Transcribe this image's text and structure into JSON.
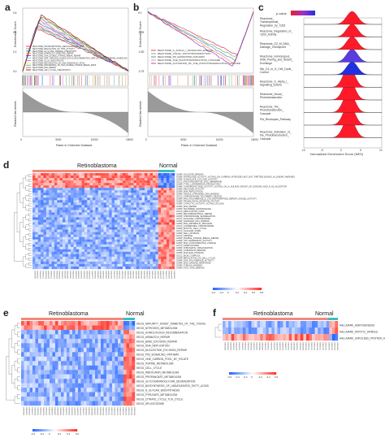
{
  "panels": {
    "a": {
      "letter": "a",
      "ylabel_top": "Enrichment Score",
      "ylabel_bottom": "Ranked list metric",
      "xlabel": "Rank in Ordered Dataset",
      "legend": [
        "REACTOME_TRANSCRIPTIONAL_REGULATION_BY_TP53",
        "REACTOME_REGULATION_OF_TP53_ACTIVITY",
        "REACTOME_G2_M_DNA_DAMAGE_CHECKPOINT",
        "REACTOME_HOMOLOGY_DIRECTED_REPAIR",
        "REACTOME_DNA_DOUBLE_STRAND_BREAK_REPAIR",
        "REACTOME_HDR_THROUGH_HOMOLOGOUS_RECOMBINATION_HRR_OR_SINGLE_STRAND_ANNEALING",
        "REACTOME_G2_M_CHECKPOINTS",
        "REACTOME_RECOGNITION_OF_DNA_DAMAGE_BY_PCNA",
        "REACTOME_PROCESSING_OF_DNA_DOUBLE_STRAND_BREAK_ENDS",
        "REACTOME_DNA_REPAIR",
        "REACTOME_CELL_CYCLE_CHECKPOINTS"
      ],
      "yticks": [
        "0.6",
        "0.4",
        "0.2",
        "0.0"
      ],
      "xticks": [
        "0",
        "5000",
        "10000",
        "15000"
      ]
    },
    "b": {
      "letter": "b",
      "ylabel_top": "Enrichment Score",
      "ylabel_bottom": "Ranked list metric",
      "xlabel": "Rank in Ordered Dataset",
      "legend": [
        "REACTOME_G_ALPHA_I_SIGNALLING_EVENTS",
        "REACTOME_VISUAL_PHOTOTRANSDUCTION",
        "REACTOME_PD_RHODOPSIN_PATHWAY",
        "REACTOME_THE_PHOTOTRANSDUCTION_CASCADE",
        "REACTOME_ACTIVATION_OF_THE_PHOTOTRANSDUCTION_CASCADE"
      ],
      "yticks": [
        "0.0",
        "-0.25",
        "-0.50",
        "-0.75"
      ],
      "xticks": [
        "0",
        "5000",
        "10000",
        "15000"
      ]
    },
    "c": {
      "letter": "c",
      "legend_title": "p.value",
      "xlabel": "Normalized Enrichment Score (NES)",
      "xticks": [
        "-10",
        "-5",
        "0",
        "5",
        "10"
      ],
      "rows": [
        "Reactome_Transcriptional_Regulation_by_Tp53",
        "Reactome_Regulation_of_Tp53_Activity",
        "Reactome_G2_M_DNA_Damage_Checkpoint",
        "Reactome_Homologous_DNA_Pairing_and_Strand_Exchange",
        "Wp_G1_to_S_Cell_Cycle_Control",
        "Reactome_G_Alpha_I_Signalling_Events",
        "Reactome_Visual_Phototransduction",
        "Reactome_The_Phototransduction_Cascade",
        "Pid_Rhodopsin_Pathway",
        "Reactome_Activation_of_the_Phototransduction_Cascade"
      ]
    },
    "d": {
      "letter": "d",
      "group_left": "Retinoblastoma",
      "group_right": "Normal",
      "scale_ticks": [
        "-0.4",
        "-0.2",
        "0",
        "0.2",
        "0.4",
        "0.6",
        "0.8"
      ],
      "row_labels": [
        "GOMF_GLUCOSE_BINDING",
        "GOBP_HYDROLASE_ACTIVITY_ACTING_ON_CARBON_NITROGEN_BUT_NOT_PEPTIDE_BONDS_IN_LINEAR_AMIDINES",
        "GOMF_GUANYLATE_CYCLASE_ACTIVITY",
        "GOCC_PHOTORECEPTOR_DISC_MEMBRANE",
        "GOBP_TYPE_I_INTERFERON_PRODUCTION",
        "GOMF_OXIDOREDUCTASE_ACTIVITY_ACTING_ON_A_SULFUR_GROUP_OF_DONORS_NAD_P_AS_ACCEPTOR",
        "GOMF_HELICASE_ACTIVITY",
        "GOBP_DNA_REPLICATION",
        "GOMF_SINGLE_STRANDED_DNA_BINDING",
        "GOCC_CHROMOSOME_TELOMERIC_REGION",
        "GOMF_RNA_POLYMERASE_II_CTD_HEPTAPEPTIDE_REPEAT_KINASE_ACTIVITY",
        "GOBP_TRANSLATION_INITIATION_FACTOR",
        "GOMF_CATALYTIC_ACTIVITY_ACTING_ON_DNA",
        "GOBP_DNA_REPAIR",
        "GOBP_TELOMERE_MAINTENANCE",
        "GOCC_REPLICATION_FORK",
        "GOBP_RECOMBINATIONAL_REPAIR",
        "GOBP_CHROMOSOME_SEGREGATION",
        "GOCC_NUCLEAR_CHROMOSOME",
        "GOMF_DAMAGED_DNA_BINDING",
        "GOBP_DNA_METABOLIC_PROCESS",
        "GOCC_CONDENSED_CHROMOSOME",
        "GOBP_MITOTIC_CELL_CYCLE",
        "GOCC_NUCLEAR_PORE",
        "GOBP_CELL_DIVISION",
        "GOCC_SPINDLE",
        "GOBP_DOUBLE_STRAND_BREAK_REPAIR",
        "GOMF_ATP_DEPENDENT_ACTIVITY",
        "GOBP_DNA_CONFORMATION_CHANGE",
        "GOCC_KINETOCHORE",
        "GOBP_CHROMATIN_ORGANIZATION",
        "GOMF_CHROMATIN_BINDING",
        "GOBP_NUCLEAR_DIVISION",
        "GOCC_MCM_COMPLEX",
        "GOBP_REGULATION_OF_CELL_CYCLE",
        "GOMF_DNA_POLYMERASE_ACTIVITY",
        "GOBP_DNA_DAMAGE_RESPONSE",
        "GOMF_TUBULIN_BINDING",
        "GOMF_POLY_RNA_BINDING"
      ]
    },
    "e": {
      "letter": "e",
      "group_left": "Retinoblastoma",
      "group_right": "Normal",
      "scale_ticks": [
        "-0.4",
        "-0.2",
        "0",
        "0.2",
        "0.4",
        "0.6"
      ],
      "row_labels": [
        "KEGG_MATURITY_ONSET_DIABETES_OF_THE_YOUNG",
        "KEGG_NITROGEN_METABOLISM",
        "KEGG_HOMOLOGOUS_RECOMBINATION",
        "KEGG_MISMATCH_REPAIR",
        "KEGG_BASE_EXCISION_REPAIR",
        "KEGG_DNA_REPLICATION",
        "KEGG_NUCLEOTIDE_EXCISION_REPAIR",
        "KEGG_P53_SIGNALING_PATHWAY",
        "KEGG_ONE_CARBON_POOL_BY_FOLATE",
        "KEGG_PURINE_METABOLISM",
        "KEGG_CELL_CYCLE",
        "KEGG_RIBOFLAVIN_METABOLISM",
        "KEGG_PROPANOATE_METABOLISM",
        "KEGG_GLYCOSAMINOGLYCAN_DEGRADATION",
        "KEGG_BIOSYNTHESIS_OF_UNSATURATED_FATTY_ACIDS",
        "KEGG_N_GLYCAN_BIOSYNTHESIS",
        "KEGG_PYRUVATE_METABOLISM",
        "KEGG_CITRATE_CYCLE_TCA_CYCLE",
        "KEGG_SPLICEOSOME"
      ]
    },
    "f": {
      "letter": "f",
      "group_left": "Retinoblastoma",
      "group_right": "Normal",
      "scale_ticks": [
        "-0.6",
        "-0.4",
        "-0.2",
        "0",
        "0.2",
        "0.4",
        "0.6"
      ],
      "row_labels": [
        "HALLMARK_ADIPOGENESIS",
        "HALLMARK_MITOTIC_SPINDLE",
        "HALLMARK_UNFOLDED_PROTEIN_RESPONSE"
      ]
    }
  },
  "colors": {
    "red": "#d7263d",
    "blue": "#2c5fa8",
    "teal": "#3bbfbf",
    "salmon": "#f08a7d"
  }
}
